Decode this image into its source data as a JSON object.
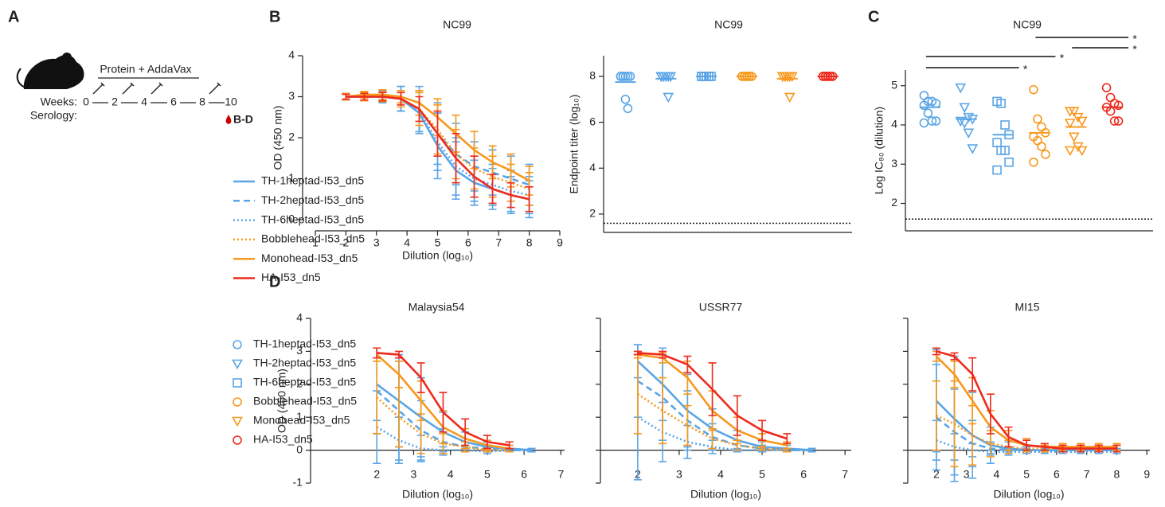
{
  "schematic": {
    "panel_label": "A",
    "regimen": "Protein + AddaVax",
    "weeks_label": "Weeks:",
    "weeks": [
      0,
      2,
      4,
      6,
      8,
      10
    ],
    "serology_label": "Serology:",
    "readout": "B-D"
  },
  "panel_labels": [
    "B",
    "C",
    "D"
  ],
  "chart_data": [
    {
      "type": "line",
      "title": "NC99",
      "xlabel": "Dilution (log₁₀)",
      "ylabel": "OD (450 nm)",
      "x": [
        2,
        2.6,
        3.2,
        3.8,
        4.4,
        5,
        5.6,
        6.2,
        6.8,
        7.4,
        8
      ],
      "xlim": [
        1,
        9
      ],
      "xticks": [
        1,
        2,
        3,
        4,
        5,
        6,
        7,
        8,
        9
      ],
      "ylim": [
        0,
        4
      ],
      "yticks": [
        0,
        1,
        2,
        3,
        4
      ],
      "series": [
        {
          "name": "TH-1heptad-I53_dn5",
          "color": "#5aa5e6",
          "dash": "solid",
          "values": [
            3.0,
            3.0,
            3.0,
            2.95,
            2.6,
            1.8,
            1.2,
            0.9,
            0.75,
            0.6,
            0.5
          ],
          "errors": [
            0.08,
            0.1,
            0.15,
            0.3,
            0.5,
            0.8,
            0.7,
            0.55,
            0.5,
            0.45,
            0.45
          ]
        },
        {
          "name": "TH-2heptad-I53_dn5",
          "color": "#5aa5e6",
          "dash": "dashed",
          "values": [
            3.0,
            3.0,
            3.0,
            2.95,
            2.7,
            2.1,
            1.6,
            1.3,
            1.15,
            1.0,
            0.85
          ],
          "errors": [
            0.08,
            0.1,
            0.12,
            0.3,
            0.55,
            0.75,
            0.75,
            0.6,
            0.55,
            0.55,
            0.5
          ]
        },
        {
          "name": "TH-6heptad-I53_dn5",
          "color": "#5aa5e6",
          "dash": "dotted",
          "values": [
            3.0,
            3.0,
            3.0,
            2.95,
            2.65,
            1.9,
            1.3,
            1.0,
            0.85,
            0.7,
            0.6
          ],
          "errors": [
            0.08,
            0.1,
            0.12,
            0.3,
            0.5,
            0.7,
            0.7,
            0.55,
            0.5,
            0.5,
            0.45
          ]
        },
        {
          "name": "Bobblehead-I53_dn5",
          "color": "#f7981d",
          "dash": "dotted",
          "values": [
            3.0,
            3.0,
            3.0,
            2.95,
            2.7,
            2.2,
            1.6,
            1.25,
            1.05,
            0.9,
            0.75
          ],
          "errors": [
            0.08,
            0.1,
            0.12,
            0.2,
            0.4,
            0.6,
            0.6,
            0.5,
            0.5,
            0.45,
            0.4
          ]
        },
        {
          "name": "Monohead-I53_dn5",
          "color": "#f7981d",
          "dash": "solid",
          "values": [
            3.0,
            3.05,
            3.05,
            3.0,
            2.85,
            2.5,
            2.1,
            1.7,
            1.4,
            1.2,
            0.95
          ],
          "errors": [
            0.06,
            0.08,
            0.12,
            0.15,
            0.3,
            0.45,
            0.45,
            0.45,
            0.4,
            0.4,
            0.35
          ]
        },
        {
          "name": "HA-I53_dn5",
          "color": "#ee2a1c",
          "dash": "solid",
          "values": [
            3.0,
            3.0,
            3.0,
            2.95,
            2.7,
            2.1,
            1.5,
            1.05,
            0.75,
            0.6,
            0.5
          ],
          "errors": [
            0.06,
            0.08,
            0.1,
            0.15,
            0.3,
            0.55,
            0.6,
            0.5,
            0.35,
            0.3,
            0.3
          ]
        }
      ]
    },
    {
      "type": "dot",
      "title": "NC99",
      "ylabel": "Endpoint titer (log₁₀)",
      "ylim": [
        1.2,
        8.9
      ],
      "yticks": [
        2,
        4,
        6,
        8
      ],
      "reference_line": 1.6,
      "series": [
        {
          "name": "TH-1heptad-I53_dn5",
          "color": "#5aa5e6",
          "marker": "circle",
          "values": [
            8,
            8,
            8,
            8,
            8,
            8,
            8,
            7.0,
            6.6
          ],
          "mean": 7.75
        },
        {
          "name": "TH-2heptad-I53_dn5",
          "color": "#5aa5e6",
          "marker": "triangle-down",
          "values": [
            8,
            8,
            8,
            8,
            8,
            8,
            8,
            8,
            7.1
          ],
          "mean": 7.9
        },
        {
          "name": "TH-6heptad-I53_dn5",
          "color": "#5aa5e6",
          "marker": "square",
          "values": [
            8,
            8,
            8,
            8,
            8,
            8,
            8,
            8,
            8
          ],
          "mean": 8
        },
        {
          "name": "Bobblehead-I53_dn5",
          "color": "#f7981d",
          "marker": "circle",
          "values": [
            8,
            8,
            8,
            8,
            8,
            8,
            8,
            8,
            8
          ],
          "mean": 8
        },
        {
          "name": "Monohead-I53_dn5",
          "color": "#f7981d",
          "marker": "triangle-down",
          "values": [
            8,
            8,
            8,
            8,
            8,
            8,
            8,
            8,
            7.1
          ],
          "mean": 7.9
        },
        {
          "name": "HA-I53_dn5",
          "color": "#ee2a1c",
          "marker": "circle",
          "values": [
            8,
            8,
            8,
            8,
            8,
            8,
            8,
            8,
            8
          ],
          "mean": 8
        }
      ]
    },
    {
      "type": "dot",
      "title": "NC99",
      "ylabel": "Log IC₈₀ (dilution)",
      "ylim": [
        1.3,
        5.4
      ],
      "yticks": [
        2,
        3,
        4,
        5
      ],
      "reference_line": 1.6,
      "series": [
        {
          "color": "#5aa5e6",
          "marker": "circle",
          "values": [
            4.75,
            4.6,
            4.6,
            4.55,
            4.5,
            4.3,
            4.1,
            4.1,
            4.05
          ],
          "mean": 4.45
        },
        {
          "color": "#5aa5e6",
          "marker": "triangle-down",
          "values": [
            4.95,
            4.45,
            4.2,
            4.15,
            4.1,
            4.05,
            3.8,
            3.4
          ],
          "mean": 4.15
        },
        {
          "color": "#5aa5e6",
          "marker": "square",
          "values": [
            4.6,
            4.55,
            4.0,
            3.75,
            3.55,
            3.35,
            3.35,
            3.05,
            2.85
          ],
          "mean": 3.75
        },
        {
          "color": "#f7981d",
          "marker": "circle",
          "values": [
            4.9,
            4.15,
            3.95,
            3.8,
            3.7,
            3.6,
            3.45,
            3.25,
            3.05
          ],
          "mean": 3.8
        },
        {
          "color": "#f7981d",
          "marker": "triangle-down",
          "values": [
            4.35,
            4.35,
            4.2,
            4.1,
            4.05,
            3.7,
            3.45,
            3.35,
            3.35
          ],
          "mean": 3.95
        },
        {
          "color": "#ee2a1c",
          "marker": "circle",
          "values": [
            4.95,
            4.7,
            4.55,
            4.5,
            4.45,
            4.35,
            4.1,
            4.1
          ],
          "mean": 4.45
        }
      ],
      "significance": [
        {
          "pair": [
            3,
            5
          ],
          "label": "*"
        },
        {
          "pair": [
            4,
            5
          ],
          "label": "*"
        },
        {
          "pair": [
            0,
            3
          ],
          "label": "*"
        },
        {
          "pair": [
            0,
            2
          ],
          "label": "*"
        }
      ]
    },
    {
      "type": "line",
      "title": "Malaysia54",
      "xlabel": "Dilution (log₁₀)",
      "ylabel": "OD (450 nm)",
      "x": [
        2,
        2.6,
        3.2,
        3.8,
        4.4,
        5,
        5.6,
        6.2
      ],
      "xlim": [
        0.2,
        7.1
      ],
      "xticks": [
        2,
        3,
        4,
        5,
        6,
        7
      ],
      "ylim": [
        -1,
        4
      ],
      "yticks": [
        -1,
        0,
        1,
        2,
        3,
        4
      ],
      "series": [
        {
          "color": "#5aa5e6",
          "dash": "solid",
          "values": [
            2.0,
            1.5,
            1.0,
            0.55,
            0.25,
            0.1,
            0.05,
            0.0
          ],
          "errors": [
            1.1,
            1.4,
            1.2,
            0.6,
            0.3,
            0.15,
            0.1,
            0.05
          ]
        },
        {
          "color": "#5aa5e6",
          "dash": "dashed",
          "values": [
            1.8,
            1.2,
            0.6,
            0.25,
            0.1,
            0.05,
            0.0,
            0.0
          ],
          "errors": [
            1.3,
            1.5,
            0.9,
            0.4,
            0.15,
            0.1,
            0.05,
            0.05
          ]
        },
        {
          "color": "#5aa5e6",
          "dash": "dotted",
          "values": [
            0.7,
            0.3,
            0.05,
            0.0,
            0.0,
            -0.05,
            0.0,
            0.0
          ],
          "errors": [
            1.1,
            0.7,
            0.4,
            0.1,
            0.05,
            0.05,
            0.05,
            0.05
          ]
        },
        {
          "color": "#f7981d",
          "dash": "dotted",
          "values": [
            1.6,
            1.0,
            0.5,
            0.2,
            0.1,
            0.0,
            0.0,
            null
          ],
          "errors": [
            1.1,
            0.9,
            0.6,
            0.3,
            0.15,
            0.05,
            0.05,
            null
          ]
        },
        {
          "color": "#f7981d",
          "dash": "solid",
          "values": [
            2.9,
            2.3,
            1.5,
            0.7,
            0.35,
            0.15,
            0.05,
            null
          ],
          "errors": [
            0.2,
            0.4,
            0.6,
            0.5,
            0.3,
            0.15,
            0.1,
            null
          ]
        },
        {
          "color": "#ee2a1c",
          "dash": "solid",
          "values": [
            2.95,
            2.9,
            2.2,
            1.15,
            0.55,
            0.25,
            0.15,
            null
          ],
          "errors": [
            0.15,
            0.1,
            0.45,
            0.6,
            0.4,
            0.2,
            0.1,
            null
          ]
        }
      ]
    },
    {
      "type": "line",
      "title": "USSR77",
      "xlabel": "Dilution (log₁₀)",
      "x": [
        2,
        2.6,
        3.2,
        3.8,
        4.4,
        5,
        5.6,
        6.2
      ],
      "xlim": [
        1.1,
        7.15
      ],
      "xticks": [
        2,
        3,
        4,
        5,
        6,
        7
      ],
      "ylim": [
        -1,
        4
      ],
      "yticks": [
        -1,
        0,
        1,
        2,
        3,
        4
      ],
      "ytick_labels": false,
      "series": [
        {
          "color": "#5aa5e6",
          "dash": "solid",
          "values": [
            2.7,
            2.0,
            1.2,
            0.65,
            0.3,
            0.1,
            0.05,
            0.0
          ],
          "errors": [
            0.5,
            1.1,
            1.1,
            0.6,
            0.3,
            0.15,
            0.1,
            0.05
          ]
        },
        {
          "color": "#5aa5e6",
          "dash": "dashed",
          "values": [
            2.1,
            1.6,
            0.9,
            0.4,
            0.15,
            0.05,
            0.0,
            0.0
          ],
          "errors": [
            1.1,
            1.3,
            0.9,
            0.4,
            0.15,
            0.1,
            0.05,
            0.05
          ]
        },
        {
          "color": "#5aa5e6",
          "dash": "dotted",
          "values": [
            1.0,
            0.55,
            0.25,
            0.1,
            0.0,
            0.0,
            0.0,
            0.0
          ],
          "errors": [
            1.9,
            0.9,
            0.5,
            0.2,
            0.05,
            0.05,
            0.05,
            0.05
          ]
        },
        {
          "color": "#f7981d",
          "dash": "dotted",
          "values": [
            1.7,
            1.2,
            0.75,
            0.35,
            0.15,
            0.05,
            0.0,
            null
          ],
          "errors": [
            1.2,
            1.0,
            0.6,
            0.3,
            0.15,
            0.05,
            0.05,
            null
          ]
        },
        {
          "color": "#f7981d",
          "dash": "solid",
          "values": [
            2.9,
            2.8,
            2.2,
            1.2,
            0.6,
            0.3,
            0.15,
            null
          ],
          "errors": [
            0.1,
            0.15,
            0.5,
            0.6,
            0.4,
            0.2,
            0.1,
            null
          ]
        },
        {
          "color": "#ee2a1c",
          "dash": "solid",
          "values": [
            2.95,
            2.9,
            2.6,
            1.85,
            1.05,
            0.6,
            0.35,
            null
          ],
          "errors": [
            0.05,
            0.1,
            0.25,
            0.8,
            0.6,
            0.3,
            0.15,
            null
          ]
        }
      ]
    },
    {
      "type": "line",
      "title": "MI15",
      "xlabel": "Dilution (log₁₀)",
      "x": [
        2,
        2.6,
        3.2,
        3.8,
        4.4,
        5,
        5.6,
        6.2,
        6.8,
        7.4,
        8
      ],
      "xlim": [
        1.05,
        9.1
      ],
      "xticks": [
        2,
        3,
        4,
        5,
        6,
        7,
        8,
        9
      ],
      "ylim": [
        -1,
        4
      ],
      "yticks": [
        -1,
        0,
        1,
        2,
        3,
        4
      ],
      "ytick_labels": false,
      "series": [
        {
          "color": "#5aa5e6",
          "dash": "solid",
          "values": [
            1.5,
            0.95,
            0.45,
            0.15,
            0.05,
            0,
            0,
            0,
            0,
            0,
            0
          ],
          "errors": [
            1.55,
            1.9,
            1.3,
            0.55,
            0.2,
            0.1,
            0.05,
            0.05,
            0.05,
            0.05,
            0.05
          ]
        },
        {
          "color": "#5aa5e6",
          "dash": "dashed",
          "values": [
            1.0,
            0.55,
            0.2,
            0.05,
            0,
            0,
            0,
            0,
            0,
            0,
            0
          ],
          "errors": [
            1.6,
            1.3,
            0.7,
            0.2,
            0.05,
            0.05,
            0.05,
            0.05,
            0.05,
            0.05,
            0.05
          ]
        },
        {
          "color": "#5aa5e6",
          "dash": "dotted",
          "values": [
            0.3,
            0.1,
            0,
            -0.05,
            -0.05,
            -0.05,
            -0.05,
            -0.05,
            -0.05,
            -0.05,
            -0.05
          ],
          "errors": [
            0.6,
            0.4,
            0.2,
            0.05,
            0.05,
            0.05,
            0.05,
            0.05,
            0.05,
            0.05,
            0.05
          ]
        },
        {
          "color": "#f7981d",
          "dash": "dotted",
          "values": [
            1.05,
            0.8,
            0.45,
            0.2,
            0.1,
            0.05,
            0.05,
            0.05,
            0.05,
            0.05,
            0.05
          ],
          "errors": [
            1.05,
            1.3,
            0.9,
            0.4,
            0.2,
            0.1,
            0.1,
            0.1,
            0.1,
            0.1,
            0.1
          ]
        },
        {
          "color": "#f7981d",
          "dash": "solid",
          "values": [
            2.85,
            2.3,
            1.5,
            0.7,
            0.3,
            0.15,
            0.1,
            0.1,
            0.1,
            0.1,
            0.1
          ],
          "errors": [
            0.15,
            0.4,
            0.7,
            0.5,
            0.3,
            0.2,
            0.1,
            0.1,
            0.1,
            0.1,
            0.1
          ]
        },
        {
          "color": "#ee2a1c",
          "dash": "solid",
          "values": [
            3.0,
            2.85,
            2.3,
            1.1,
            0.4,
            0.15,
            0.1,
            0.05,
            0.05,
            0.05,
            0.05
          ],
          "errors": [
            0.1,
            0.1,
            0.5,
            0.6,
            0.3,
            0.15,
            0.1,
            0.1,
            0.1,
            0.1,
            0.1
          ]
        }
      ]
    }
  ]
}
